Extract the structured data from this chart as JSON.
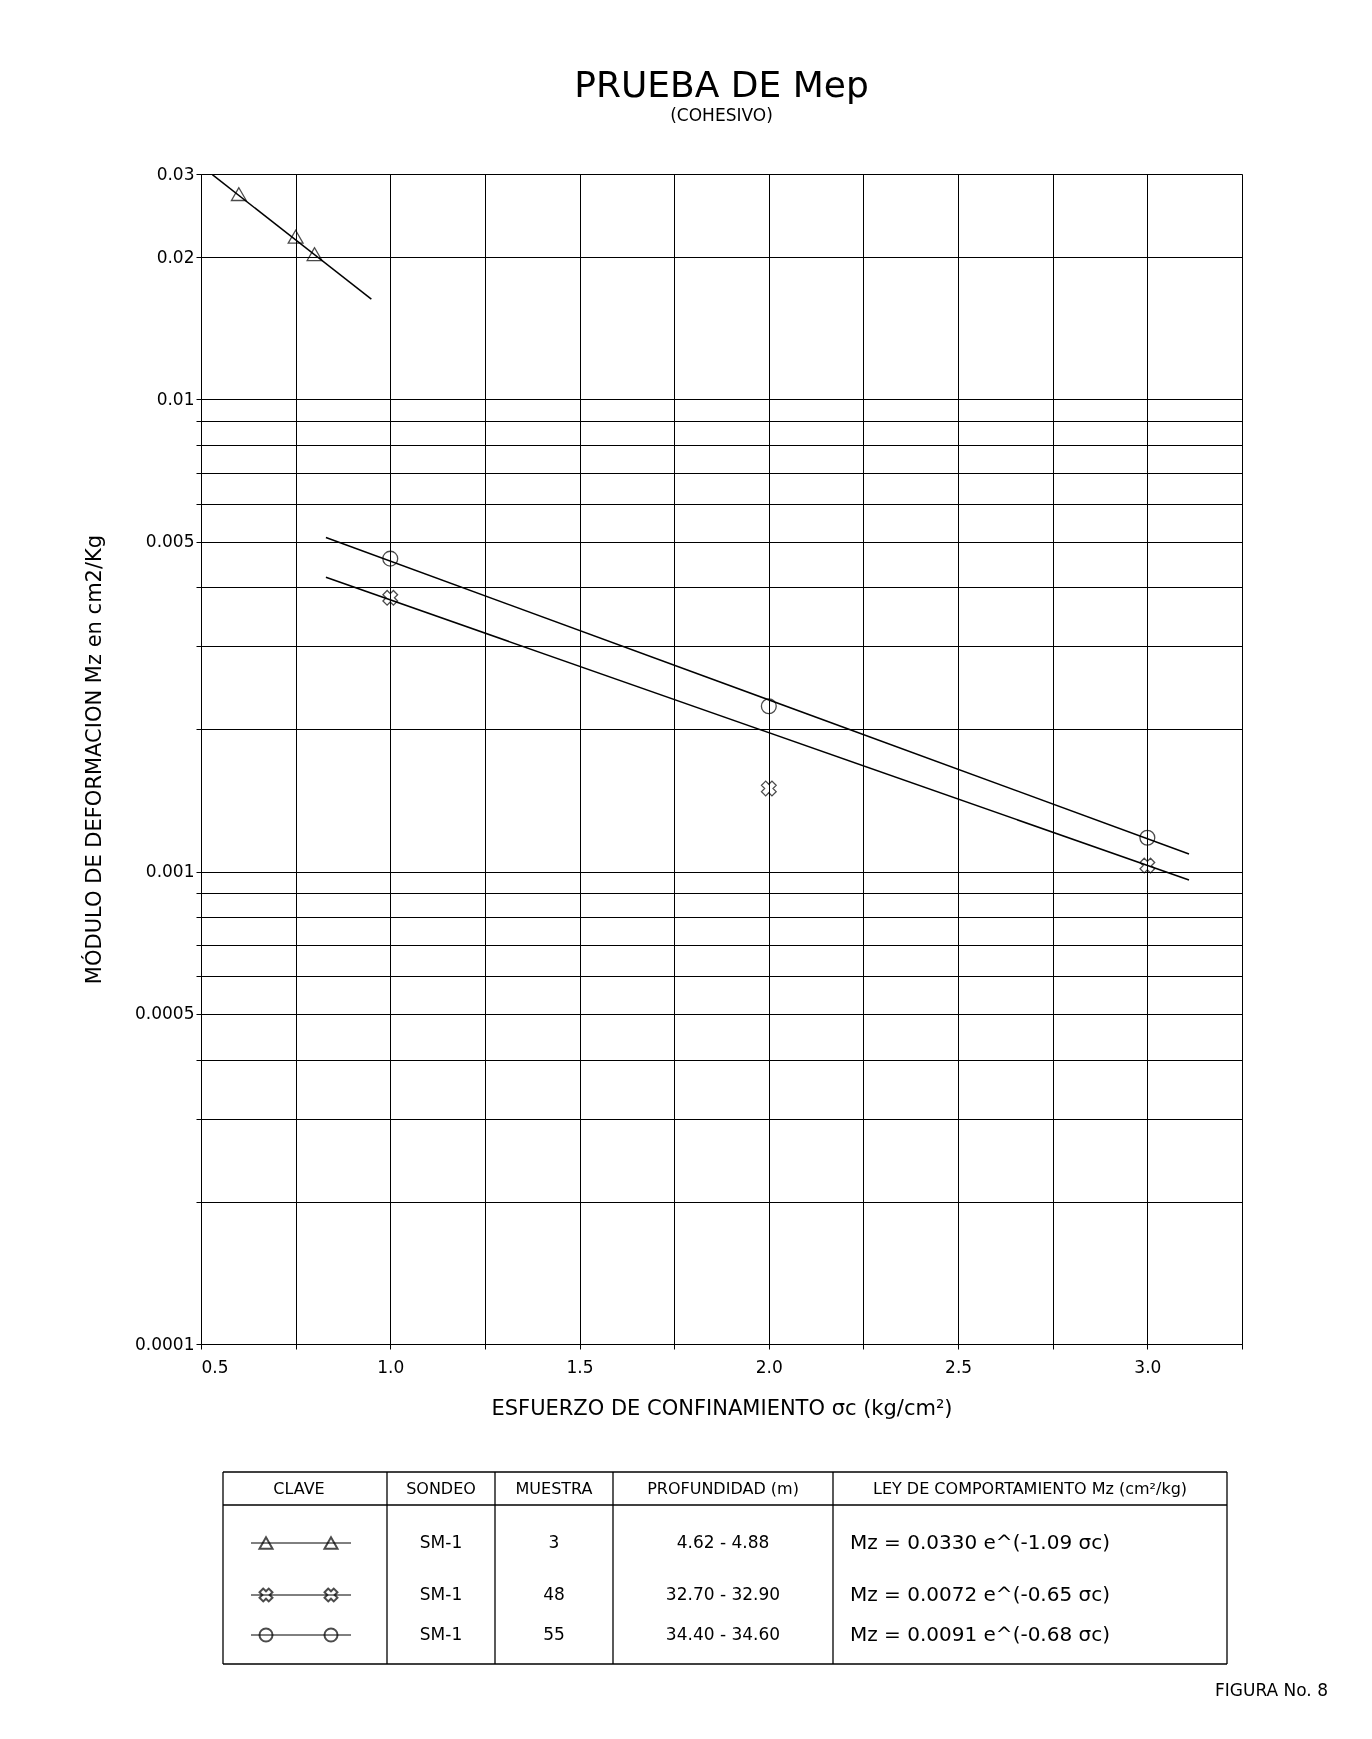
{
  "chart_data": {
    "type": "scatter",
    "title": "PRUEBA DE Mep",
    "subtitle": "(COHESIVO)",
    "xlabel": "ESFUERZO DE CONFINAMIENTO     σc (kg/cm²)",
    "ylabel": "MÓDULO DE DEFORMACION Mz en cm2/Kg",
    "log": "y",
    "grid": true,
    "xlim": [
      0.5,
      3.25
    ],
    "ylim": [
      0.0001,
      0.03
    ],
    "xticks": [
      0.5,
      {
        "value": 0.75,
        "label": null
      },
      {
        "value": 1,
        "label": "1.0"
      },
      {
        "value": 1.25,
        "label": null
      },
      1.5,
      {
        "value": 1.75,
        "label": null
      },
      {
        "value": 2,
        "label": "2.0"
      },
      {
        "value": 2.25,
        "label": null
      },
      2.5,
      {
        "value": 2.75,
        "label": null
      },
      {
        "value": 3,
        "label": "3.0"
      },
      {
        "value": 3.25,
        "label": null
      }
    ],
    "yticks": [
      0.0001,
      {
        "value": 0.0002,
        "label": null
      },
      {
        "value": 0.0003,
        "label": null
      },
      {
        "value": 0.0004,
        "label": null
      },
      0.0005,
      {
        "value": 0.0006,
        "label": null
      },
      {
        "value": 0.0007,
        "label": null
      },
      {
        "value": 0.0008,
        "label": null
      },
      {
        "value": 0.0009,
        "label": null
      },
      0.001,
      {
        "value": 0.002,
        "label": null
      },
      {
        "value": 0.003,
        "label": null
      },
      {
        "value": 0.004,
        "label": null
      },
      0.005,
      {
        "value": 0.006,
        "label": null
      },
      {
        "value": 0.007,
        "label": null
      },
      {
        "value": 0.008,
        "label": null
      },
      {
        "value": 0.009,
        "label": null
      },
      0.01,
      0.02,
      0.03
    ],
    "series": [
      {
        "type": "scatter",
        "marker": "triangle",
        "color": "#000000",
        "x": [
          0.6,
          0.75,
          0.8
        ],
        "values": [
          0.0272,
          0.0221,
          0.0203
        ]
      },
      {
        "type": "line",
        "line_style": "solid",
        "color": "#000000",
        "x": [
          0.53,
          0.95
        ],
        "values": [
          0.0299,
          0.0163
        ]
      },
      {
        "type": "scatter",
        "marker": "cross",
        "color": "#000000",
        "x": [
          1.0,
          2.0,
          3.0
        ],
        "values": [
          0.0038,
          0.0015,
          0.00103
        ]
      },
      {
        "type": "line",
        "line_style": "solid",
        "color": "#000000",
        "x": [
          0.83,
          3.11
        ],
        "values": [
          0.0042,
          0.00096
        ]
      },
      {
        "type": "scatter",
        "marker": "circle",
        "color": "#000000",
        "x": [
          1.0,
          2.0,
          3.0
        ],
        "values": [
          0.0046,
          0.00224,
          0.00118
        ]
      },
      {
        "type": "line",
        "line_style": "solid",
        "color": "#000000",
        "x": [
          0.83,
          3.11
        ],
        "values": [
          0.0051,
          0.00109
        ]
      }
    ],
    "annotations": [
      "CLAVE",
      "SONDEO",
      "MUESTRA",
      "PROFUNDIDAD (m)",
      "LEY DE COMPORTAMIENTO Mz (cm²/kg)",
      "SM-1",
      "3",
      "4.62  -  4.88",
      "Mz = 0.0330 e^(-1.09 σc)",
      "SM-1",
      "48",
      "32.70  -  32.90",
      "Mz = 0.0072 e^(-0.65 σc)",
      "SM-1",
      "55",
      "34.40  -  34.60",
      "Mz = 0.0091 e^(-0.68 σc)",
      "FIGURA    No. 8"
    ]
  }
}
